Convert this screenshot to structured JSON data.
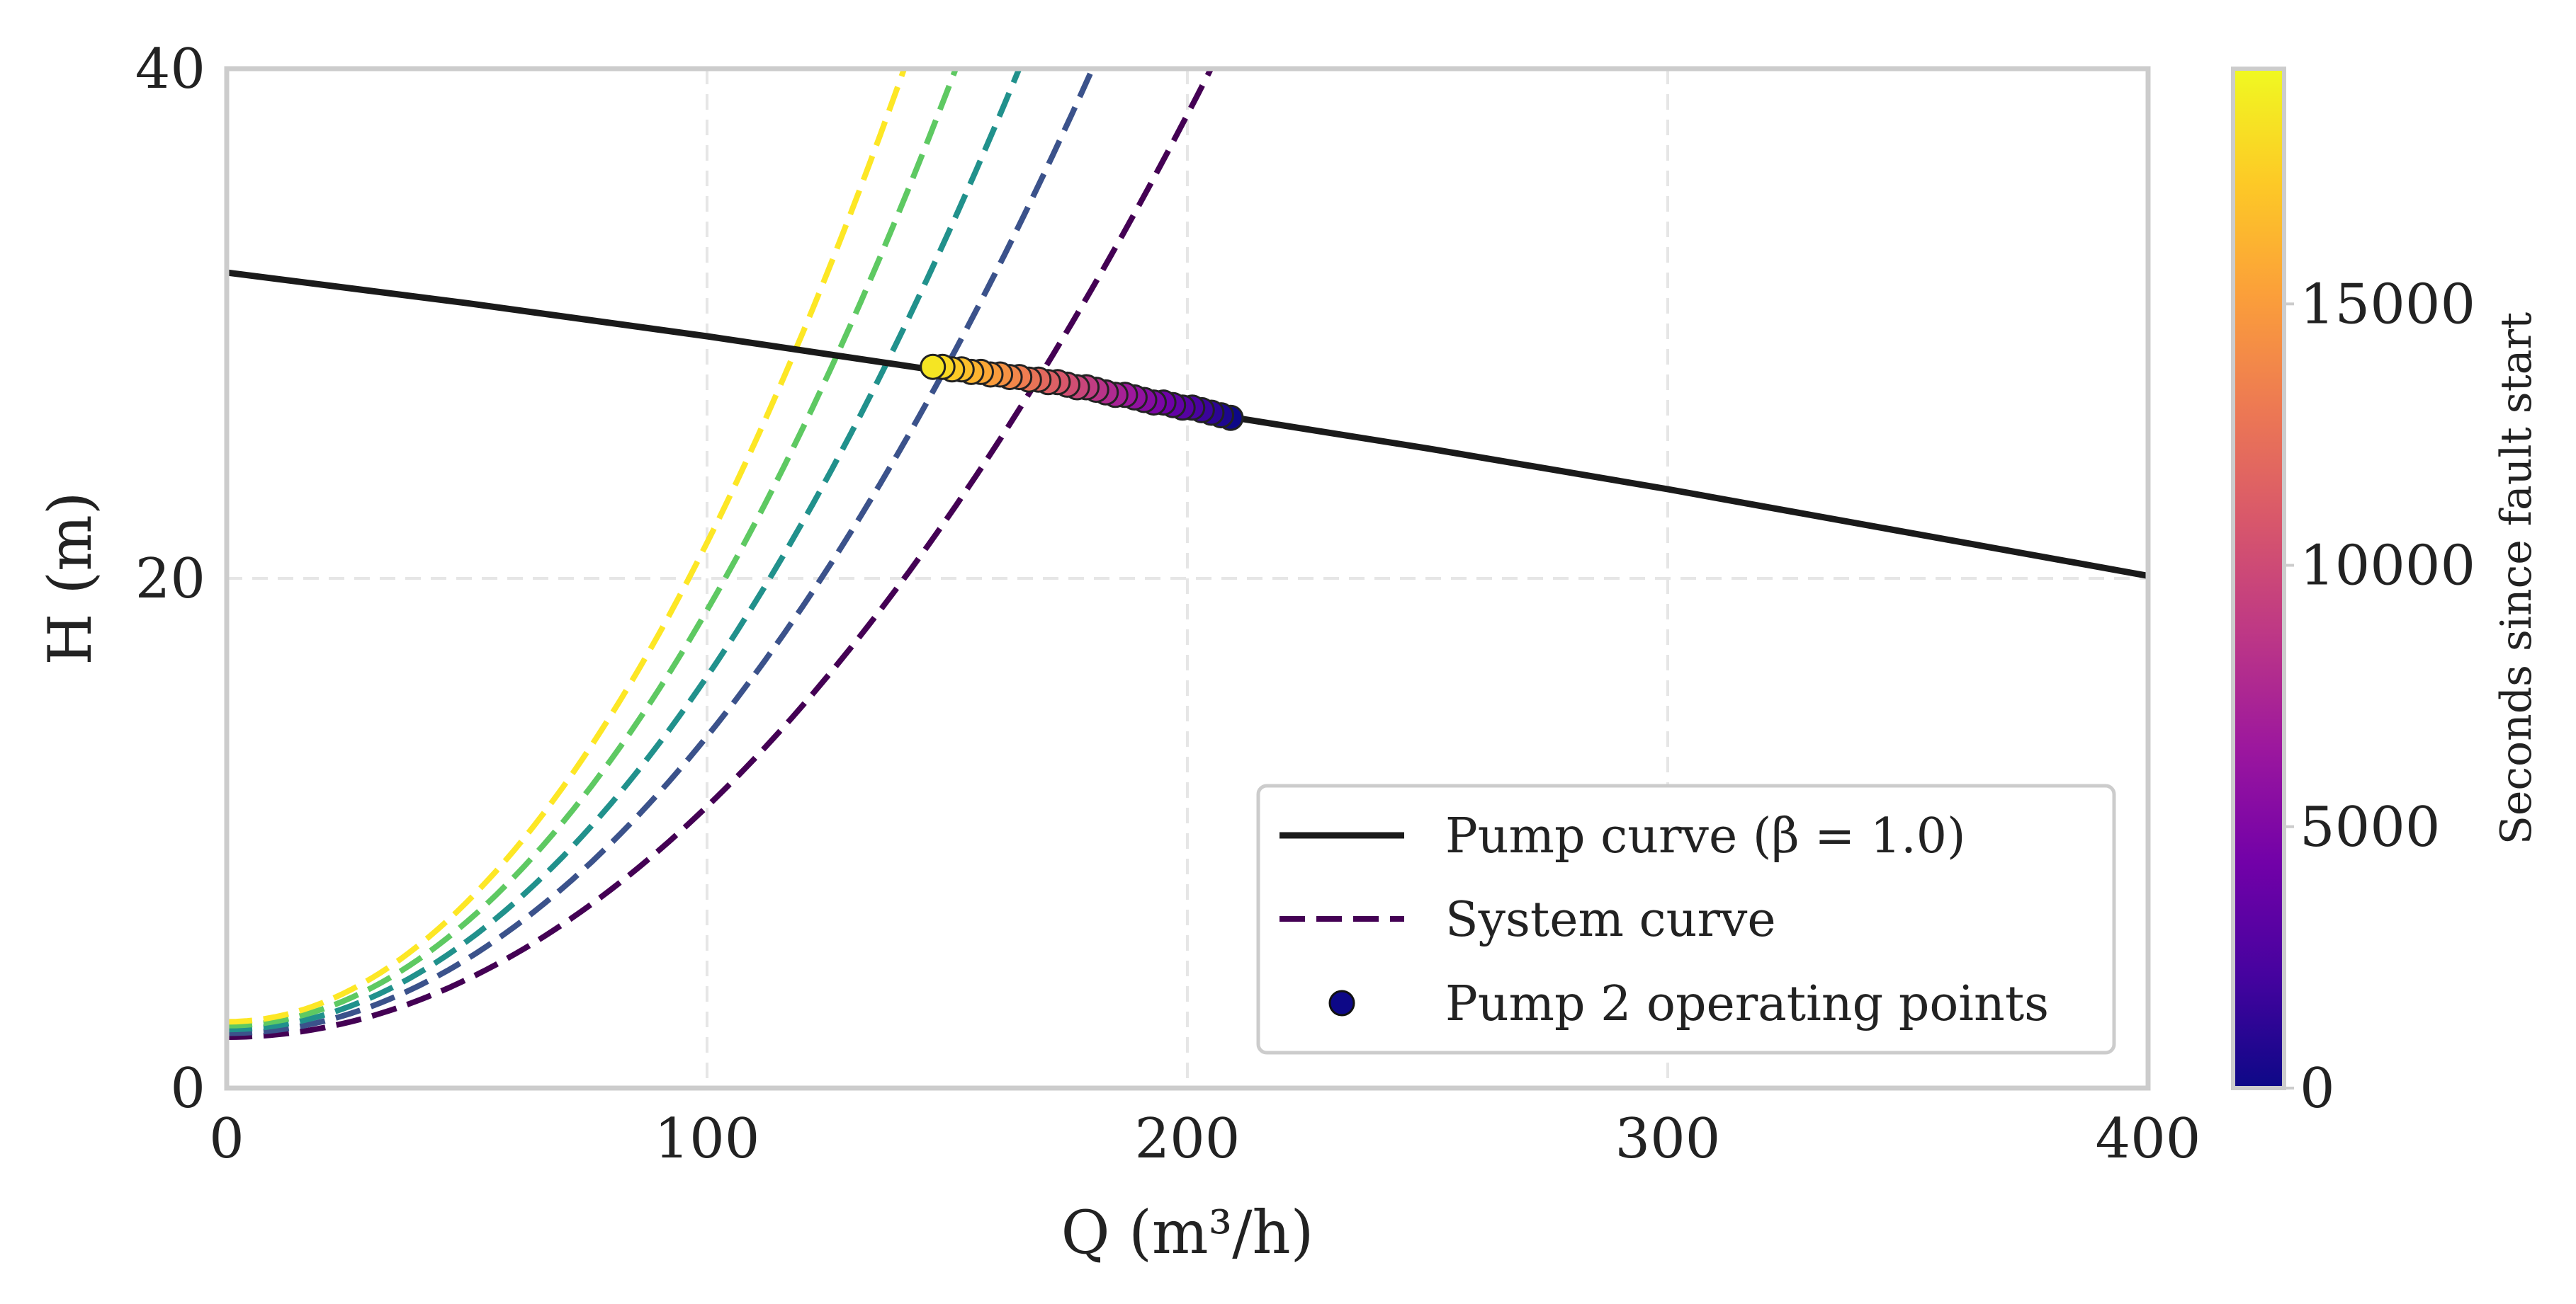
{
  "chart_data": {
    "type": "line",
    "xlabel": "Q (m³/h)",
    "ylabel": "H (m)",
    "xlim": [
      0,
      400
    ],
    "ylim": [
      0,
      40
    ],
    "x_ticks": [
      "0",
      "100",
      "200",
      "300",
      "400"
    ],
    "y_ticks": [
      "0",
      "20",
      "40"
    ],
    "grid": true,
    "legend_position": "bottom-right",
    "legend": [
      {
        "label": "Pump curve (β = 1.0)",
        "style": "solid-line",
        "color": "#1a1a1a"
      },
      {
        "label": "System curve",
        "style": "dashed-line",
        "color": "#440154"
      },
      {
        "label": "Pump 2 operating points",
        "style": "marker",
        "color": "#0d0887"
      }
    ],
    "pump_curve": {
      "x": [
        0,
        50,
        100,
        150,
        200,
        250,
        300,
        350,
        400
      ],
      "y": [
        32.0,
        30.8,
        29.5,
        28.1,
        26.6,
        25.1,
        23.5,
        21.8,
        20.1
      ]
    },
    "system_curves": [
      {
        "static_head": 2.0,
        "k": 0.000905,
        "exponent": 2,
        "color": "#440154"
      },
      {
        "static_head": 2.15,
        "k": 0.001165,
        "exponent": 2,
        "color": "#3b528b"
      },
      {
        "static_head": 2.3,
        "k": 0.001385,
        "exponent": 2,
        "color": "#21918c"
      },
      {
        "static_head": 2.45,
        "k": 0.00163,
        "exponent": 2,
        "color": "#5ec962"
      },
      {
        "static_head": 2.6,
        "k": 0.00188,
        "exponent": 2,
        "color": "#fde725"
      }
    ],
    "operating_points": {
      "x": [
        209,
        207,
        205,
        203,
        201,
        199,
        197,
        195,
        193,
        191,
        189,
        187,
        185,
        183,
        181,
        179,
        177,
        175,
        173,
        171,
        169,
        167,
        165,
        163,
        161,
        159,
        157,
        155,
        153,
        151,
        149,
        147
      ],
      "y": [
        26.3,
        26.4,
        26.5,
        26.6,
        26.7,
        26.7,
        26.8,
        26.9,
        26.9,
        27.0,
        27.1,
        27.2,
        27.2,
        27.3,
        27.4,
        27.5,
        27.5,
        27.6,
        27.7,
        27.7,
        27.8,
        27.8,
        27.9,
        27.9,
        28.0,
        28.0,
        28.1,
        28.1,
        28.2,
        28.2,
        28.3,
        28.3
      ],
      "t": [
        0,
        600,
        1200,
        1800,
        2400,
        3000,
        3600,
        4200,
        4800,
        5400,
        6000,
        6600,
        7200,
        7800,
        8400,
        9000,
        9600,
        10200,
        10800,
        11400,
        12000,
        12600,
        13200,
        13800,
        14400,
        15000,
        15600,
        16200,
        16800,
        17400,
        18000,
        18600
      ]
    },
    "colorbar": {
      "label": "Seconds since fault start",
      "range": [
        0,
        19500
      ],
      "ticks": [
        "0",
        "5000",
        "10000",
        "15000"
      ],
      "colormap": [
        "#0d0887",
        "#46039f",
        "#7201a8",
        "#9c179e",
        "#bd3786",
        "#d8576b",
        "#ed7953",
        "#fb9f3a",
        "#fdca26",
        "#f0f921"
      ]
    }
  }
}
